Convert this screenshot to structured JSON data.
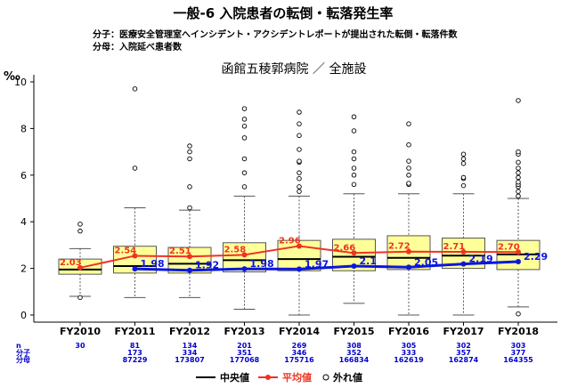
{
  "header": {
    "title": "一般-6 入院患者の転倒・転落発生率",
    "numerator_note": "分子：医療安全管理室へインシデント・アクシデントレポートが提出された転倒・転落件数",
    "denominator_note": "分母：入院延べ患者数"
  },
  "chart_data": {
    "type": "box",
    "title": "函館五稜郭病院 ／ 全施設",
    "ylabel": "‰",
    "ylim": [
      0,
      10
    ],
    "yticks": [
      0,
      2,
      4,
      6,
      8,
      10
    ],
    "categories": [
      "FY2010",
      "FY2011",
      "FY2012",
      "FY2013",
      "FY2014",
      "FY2015",
      "FY2016",
      "FY2017",
      "FY2018"
    ],
    "boxes": [
      {
        "whisker_low": 0.8,
        "q1": 1.75,
        "median": 1.95,
        "q3": 2.4,
        "whisker_high": 2.85,
        "outliers": [
          0.75,
          3.6,
          3.9
        ]
      },
      {
        "whisker_low": 0.75,
        "q1": 1.8,
        "median": 2.1,
        "q3": 2.95,
        "whisker_high": 4.6,
        "outliers": [
          6.3,
          9.7
        ]
      },
      {
        "whisker_low": 0.75,
        "q1": 1.8,
        "median": 2.2,
        "q3": 2.9,
        "whisker_high": 4.5,
        "outliers": [
          4.6,
          5.5,
          6.7,
          7.0,
          7.25
        ]
      },
      {
        "whisker_low": 0.25,
        "q1": 1.85,
        "median": 2.35,
        "q3": 3.1,
        "whisker_high": 5.1,
        "outliers": [
          5.5,
          6.1,
          6.7,
          7.6,
          8.1,
          8.4,
          8.85
        ]
      },
      {
        "whisker_low": 0.0,
        "q1": 1.9,
        "median": 2.4,
        "q3": 3.2,
        "whisker_high": 5.1,
        "outliers": [
          5.3,
          5.5,
          5.85,
          6.1,
          6.55,
          6.6,
          7.1,
          7.7,
          8.2,
          8.7
        ]
      },
      {
        "whisker_low": 0.5,
        "q1": 1.9,
        "median": 2.5,
        "q3": 3.25,
        "whisker_high": 5.2,
        "outliers": [
          5.6,
          6.0,
          6.3,
          6.7,
          7.0,
          7.9,
          8.5
        ]
      },
      {
        "whisker_low": 0.0,
        "q1": 1.95,
        "median": 2.45,
        "q3": 3.4,
        "whisker_high": 5.2,
        "outliers": [
          5.6,
          5.65,
          6.0,
          6.3,
          6.6,
          7.3,
          8.2
        ]
      },
      {
        "whisker_low": 0.0,
        "q1": 2.0,
        "median": 2.55,
        "q3": 3.3,
        "whisker_high": 5.2,
        "outliers": [
          5.55,
          5.85,
          5.9,
          6.5,
          6.7,
          6.9
        ]
      },
      {
        "whisker_low": 0.35,
        "q1": 1.95,
        "median": 2.6,
        "q3": 3.2,
        "whisker_high": 5.0,
        "outliers": [
          0.05,
          5.1,
          5.3,
          5.5,
          5.6,
          5.7,
          5.9,
          6.1,
          6.3,
          6.55,
          6.9,
          7.0,
          9.2
        ]
      }
    ],
    "series": [
      {
        "name": "平均値",
        "color": "#ee3322",
        "values": [
          2.03,
          2.54,
          2.51,
          2.58,
          2.96,
          2.66,
          2.72,
          2.71,
          2.7
        ],
        "labels": [
          "2.03",
          "2.54",
          "2.51",
          "2.58",
          "2.96",
          "2.66",
          "2.72",
          "2.71",
          "2.70"
        ]
      },
      {
        "name": "",
        "color": "#0a16e0",
        "values": [
          null,
          1.98,
          1.92,
          1.98,
          1.97,
          2.1,
          2.05,
          2.19,
          2.29
        ],
        "labels": [
          "",
          "1.98",
          "1.92",
          "1.98",
          "1.97",
          "2.1",
          "2.05",
          "2.19",
          "2.29"
        ]
      }
    ],
    "table": {
      "row_labels": [
        "n",
        "分子",
        "分母"
      ],
      "n": [
        "30",
        "81",
        "134",
        "201",
        "269",
        "308",
        "305",
        "302",
        "303"
      ],
      "numerator": [
        "",
        "173",
        "334",
        "351",
        "346",
        "352",
        "333",
        "357",
        "377"
      ],
      "denominator": [
        "",
        "87229",
        "173807",
        "177068",
        "175716",
        "166834",
        "162619",
        "162874",
        "164355"
      ]
    },
    "legend": {
      "placement": "bottom",
      "items": [
        {
          "label": "中央値",
          "kind": "line",
          "color": "#000000"
        },
        {
          "label": "平均値",
          "kind": "line-dot",
          "color": "#ee3322"
        },
        {
          "label": "外れ値",
          "kind": "circle",
          "color": "#000000"
        }
      ]
    },
    "colors": {
      "box_fill": "#ffff99",
      "box_stroke": "#555555",
      "table_text": "#0000cc"
    },
    "grid": false
  }
}
